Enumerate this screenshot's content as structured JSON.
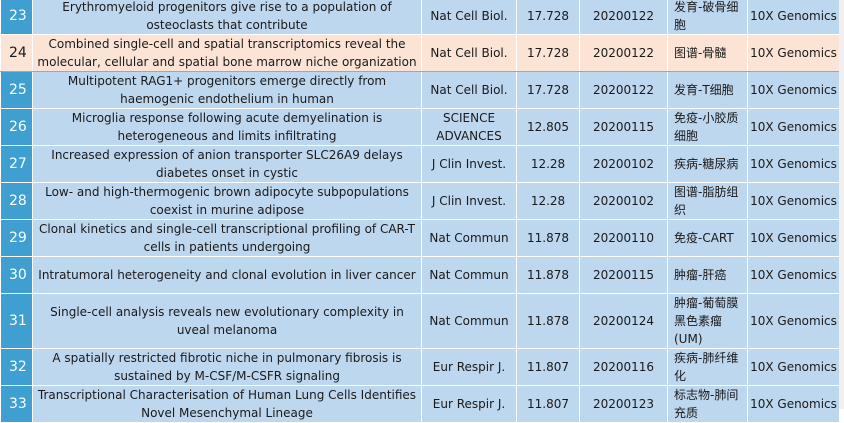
{
  "rows": [
    {
      "num": "23",
      "title": "Erythromyeloid progenitors give rise to a population of osteoclasts that contribute",
      "journal": "Nat Cell Biol.",
      "impact": "17.728",
      "date": "20200122",
      "tag": "发育-破骨细胞",
      "platform": "10X Genomics",
      "highlight": false
    },
    {
      "num": "24",
      "title": "Combined single-cell and spatial transcriptomics reveal the molecular, cellular and spatial bone marrow niche organization",
      "journal": "Nat Cell Biol.",
      "impact": "17.728",
      "date": "20200122",
      "tag": "图谱-骨髓",
      "platform": "10X Genomics",
      "highlight": true
    },
    {
      "num": "25",
      "title": "Multipotent RAG1+ progenitors emerge directly from haemogenic endothelium in human",
      "journal": "Nat Cell Biol.",
      "impact": "17.728",
      "date": "20200122",
      "tag": "发育-T细胞",
      "platform": "10X Genomics",
      "highlight": false
    },
    {
      "num": "26",
      "title": "Microglia response following acute demyelination is heterogeneous and limits infiltrating",
      "journal": "SCIENCE ADVANCES",
      "impact": "12.805",
      "date": "20200115",
      "tag": "免疫-小胶质细胞",
      "platform": "10X Genomics",
      "highlight": false
    },
    {
      "num": "27",
      "title": "Increased expression of anion transporter SLC26A9 delays diabetes onset in cystic",
      "journal": "J Clin Invest.",
      "impact": "12.28",
      "date": "20200102",
      "tag": "疾病-糖尿病",
      "platform": "10X Genomics",
      "highlight": false
    },
    {
      "num": "28",
      "title": "Low- and high-thermogenic brown adipocyte subpopulations coexist in murine adipose",
      "journal": "J Clin Invest.",
      "impact": "12.28",
      "date": "20200102",
      "tag": "图谱-脂肪组织",
      "platform": "10X Genomics",
      "highlight": false
    },
    {
      "num": "29",
      "title": "Clonal kinetics and single-cell transcriptional profiling of CAR-T cells in patients undergoing",
      "journal": "Nat Commun",
      "impact": "11.878",
      "date": "20200110",
      "tag": "免疫-CART",
      "platform": "10X Genomics",
      "highlight": false
    },
    {
      "num": "30",
      "title": "Intratumoral heterogeneity and clonal evolution in liver cancer",
      "journal": "Nat Commun",
      "impact": "11.878",
      "date": "20200115",
      "tag": "肿瘤-肝癌",
      "platform": "10X Genomics",
      "highlight": false
    },
    {
      "num": "31",
      "title": "Single-cell analysis reveals new evolutionary complexity in uveal melanoma",
      "journal": "Nat Commun",
      "impact": "11.878",
      "date": "20200124",
      "tag": "肿瘤-葡萄膜黑色素瘤(UM)",
      "platform": "10X Genomics",
      "highlight": false
    },
    {
      "num": "32",
      "title": "A spatially restricted fibrotic niche in pulmonary fibrosis is sustained by M-CSF/M-CSFR signaling",
      "journal": "Eur Respir J.",
      "impact": "11.807",
      "date": "20200116",
      "tag": "疾病-肺纤维化",
      "platform": "10X Genomics",
      "highlight": false
    },
    {
      "num": "33",
      "title": "Transcriptional Characterisation of Human Lung Cells Identifies Novel Mesenchymal Lineage",
      "journal": "Eur Respir J.",
      "impact": "11.807",
      "date": "20200123",
      "tag": "标志物-肺间充质",
      "platform": "10X Genomics",
      "highlight": false
    }
  ]
}
